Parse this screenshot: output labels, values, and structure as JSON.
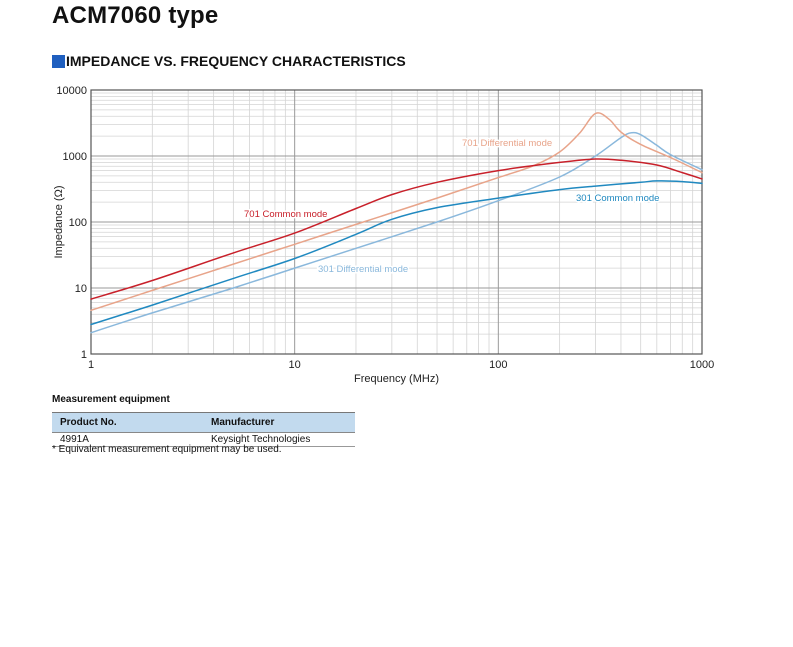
{
  "document": {
    "title": "ACM7060 type",
    "section_heading": "IMPEDANCE VS. FREQUENCY CHARACTERISTICS"
  },
  "chart_data": {
    "type": "line",
    "title": "",
    "xlabel": "Frequency (MHz)",
    "ylabel": "Impedance (Ω)",
    "xscale": "log",
    "yscale": "log",
    "xlim": [
      1,
      1000
    ],
    "ylim": [
      1,
      10000
    ],
    "x_ticks": [
      1,
      10,
      100,
      1000
    ],
    "x_tick_labels": [
      "1",
      "10",
      "100",
      "1000"
    ],
    "y_ticks": [
      1,
      10,
      100,
      1000,
      10000
    ],
    "y_tick_labels": [
      "1",
      "10",
      "100",
      "1000",
      "10000"
    ],
    "grid": true,
    "legend": "inline labels",
    "series": [
      {
        "name": "701 Common mode",
        "color": "#c8202a",
        "x": [
          1,
          2,
          5,
          10,
          20,
          30,
          50,
          100,
          200,
          300,
          400,
          600,
          800,
          1000
        ],
        "y": [
          6.8,
          13,
          34,
          68,
          160,
          260,
          400,
          600,
          800,
          900,
          860,
          730,
          560,
          450
        ]
      },
      {
        "name": "701 Differential mode",
        "color": "#e8a48a",
        "x": [
          1,
          2,
          5,
          10,
          20,
          50,
          100,
          150,
          200,
          250,
          300,
          350,
          400,
          500,
          700,
          1000
        ],
        "y": [
          4.6,
          9.2,
          23,
          46,
          92,
          230,
          470,
          720,
          1150,
          2200,
          4400,
          3600,
          2300,
          1500,
          950,
          560
        ]
      },
      {
        "name": "301 Common mode",
        "color": "#2089c0",
        "x": [
          1,
          2,
          5,
          10,
          20,
          30,
          50,
          100,
          200,
          300,
          500,
          600,
          800,
          1000
        ],
        "y": [
          2.8,
          5.5,
          14,
          28,
          65,
          110,
          165,
          230,
          310,
          350,
          400,
          420,
          410,
          385
        ]
      },
      {
        "name": "301 Differential mode",
        "color": "#8ab8dc",
        "x": [
          1,
          2,
          5,
          10,
          20,
          50,
          100,
          200,
          300,
          400,
          450,
          500,
          600,
          700,
          1000
        ],
        "y": [
          2.1,
          4.2,
          10,
          20,
          40,
          100,
          210,
          480,
          1000,
          1900,
          2250,
          2100,
          1450,
          1050,
          620
        ]
      }
    ],
    "annotations": [
      {
        "text": "701 Common mode",
        "series": "701 Common mode"
      },
      {
        "text": "701 Differential mode",
        "series": "701 Differential mode"
      },
      {
        "text": "301 Common mode",
        "series": "301 Common mode"
      },
      {
        "text": "301 Differential mode",
        "series": "301 Differential mode"
      }
    ]
  },
  "measurement": {
    "title": "Measurement equipment",
    "headers": [
      "Product No.",
      "Manufacturer"
    ],
    "rows": [
      [
        "4991A",
        "Keysight Technologies"
      ]
    ],
    "footnote": "*  Equivalent measurement equipment may be used."
  }
}
